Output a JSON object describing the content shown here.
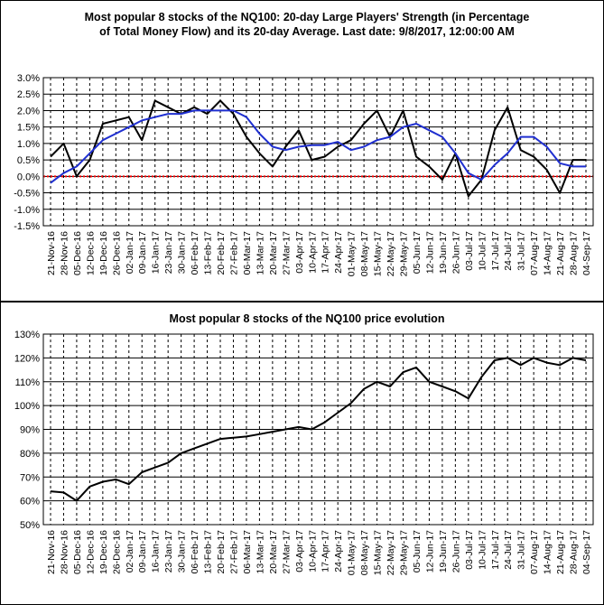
{
  "chart_data": [
    {
      "type": "line",
      "title_line1": "Most popular 8 stocks of the NQ100: 20-day Large Players' Strength (in Percentage",
      "title_line2": "of Total Money Flow) and its 20-day Average. Last date: 9/8/2017, 12:00:00 AM",
      "x": [
        "21-Nov-16",
        "28-Nov-16",
        "05-Dec-16",
        "12-Dec-16",
        "19-Dec-16",
        "26-Dec-16",
        "02-Jan-17",
        "09-Jan-17",
        "16-Jan-17",
        "23-Jan-17",
        "30-Jan-17",
        "06-Feb-17",
        "13-Feb-17",
        "20-Feb-17",
        "27-Feb-17",
        "06-Mar-17",
        "13-Mar-17",
        "20-Mar-17",
        "27-Mar-17",
        "03-Apr-17",
        "10-Apr-17",
        "17-Apr-17",
        "24-Apr-17",
        "01-May-17",
        "08-May-17",
        "15-May-17",
        "22-May-17",
        "29-May-17",
        "05-Jun-17",
        "12-Jun-17",
        "19-Jun-17",
        "26-Jun-17",
        "03-Jul-17",
        "10-Jul-17",
        "17-Jul-17",
        "24-Jul-17",
        "31-Jul-17",
        "07-Aug-17",
        "14-Aug-17",
        "21-Aug-17",
        "28-Aug-17",
        "04-Sep-17"
      ],
      "ylim": [
        -1.5,
        3.0
      ],
      "y_ticks": [
        "-1.5%",
        "-1.0%",
        "-0.5%",
        "0.0%",
        "0.5%",
        "1.0%",
        "1.5%",
        "2.0%",
        "2.5%",
        "3.0%"
      ],
      "grid": true,
      "zero_line_color": "#ff0000",
      "series": [
        {
          "color": "#000000",
          "values": [
            0.6,
            1.0,
            0.0,
            0.5,
            1.6,
            1.7,
            1.8,
            1.1,
            2.3,
            2.1,
            1.9,
            2.1,
            1.9,
            2.3,
            1.9,
            1.2,
            0.7,
            0.3,
            0.9,
            1.4,
            0.5,
            0.6,
            0.9,
            1.1,
            1.6,
            2.0,
            1.2,
            2.0,
            0.6,
            0.3,
            -0.1,
            0.7,
            -0.6,
            -0.1,
            1.4,
            2.1,
            0.8,
            0.6,
            0.2,
            -0.5,
            0.5,
            0.5
          ]
        },
        {
          "color": "#1f2fd0",
          "values": [
            -0.2,
            0.1,
            0.3,
            0.7,
            1.1,
            1.3,
            1.5,
            1.7,
            1.8,
            1.9,
            1.9,
            2.0,
            2.0,
            2.0,
            2.0,
            1.8,
            1.3,
            0.9,
            0.8,
            0.9,
            0.95,
            0.95,
            1.05,
            0.8,
            0.9,
            1.1,
            1.2,
            1.5,
            1.6,
            1.4,
            1.2,
            0.7,
            0.1,
            -0.1,
            0.35,
            0.7,
            1.2,
            1.2,
            0.9,
            0.4,
            0.3,
            0.3
          ]
        }
      ]
    },
    {
      "type": "line",
      "title": "Most popular 8 stocks of the NQ100 price evolution",
      "x": [
        "21-Nov-16",
        "28-Nov-16",
        "05-Dec-16",
        "12-Dec-16",
        "19-Dec-16",
        "26-Dec-16",
        "02-Jan-17",
        "09-Jan-17",
        "16-Jan-17",
        "23-Jan-17",
        "30-Jan-17",
        "06-Feb-17",
        "13-Feb-17",
        "20-Feb-17",
        "27-Feb-17",
        "06-Mar-17",
        "13-Mar-17",
        "20-Mar-17",
        "27-Mar-17",
        "03-Apr-17",
        "10-Apr-17",
        "17-Apr-17",
        "24-Apr-17",
        "01-May-17",
        "08-May-17",
        "15-May-17",
        "22-May-17",
        "29-May-17",
        "05-Jun-17",
        "12-Jun-17",
        "19-Jun-17",
        "26-Jun-17",
        "03-Jul-17",
        "10-Jul-17",
        "17-Jul-17",
        "24-Jul-17",
        "31-Jul-17",
        "07-Aug-17",
        "14-Aug-17",
        "21-Aug-17",
        "28-Aug-17",
        "04-Sep-17"
      ],
      "ylim": [
        50,
        130
      ],
      "y_ticks": [
        "50%",
        "60%",
        "70%",
        "80%",
        "90%",
        "100%",
        "110%",
        "120%",
        "130%"
      ],
      "grid": true,
      "series": [
        {
          "color": "#000000",
          "values": [
            64,
            63.5,
            60,
            66,
            68,
            69,
            67,
            72,
            74,
            76,
            80,
            82,
            84,
            86,
            86.5,
            87,
            88,
            89,
            90,
            91,
            90,
            93,
            97,
            101,
            107,
            110,
            108,
            114,
            116,
            110,
            108,
            106,
            103,
            112,
            119,
            120,
            117,
            120,
            118,
            117,
            120,
            119
          ]
        }
      ]
    }
  ]
}
